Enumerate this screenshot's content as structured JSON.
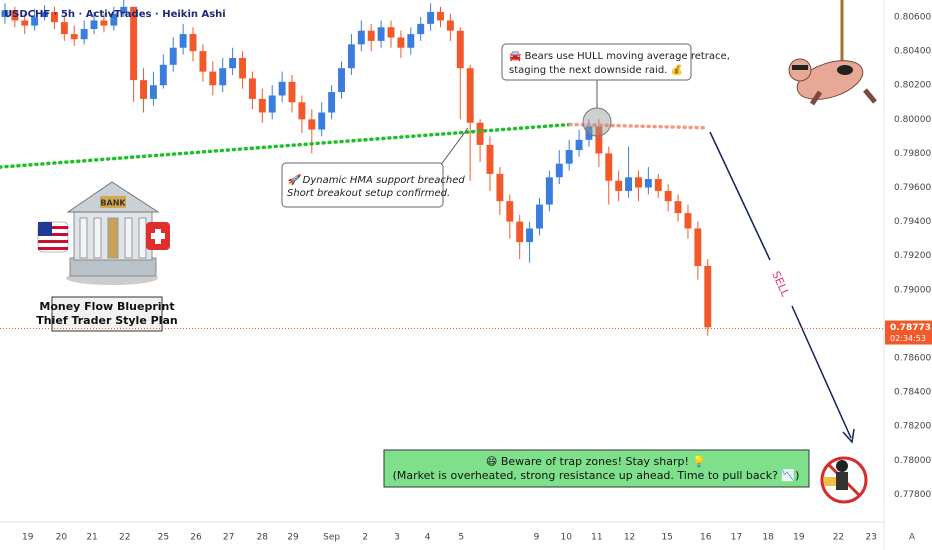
{
  "chart_data": {
    "type": "candlestick",
    "title": "USDCHF · 5h · ActivTrades · Heikin Ashi",
    "up_color": "#3b7ddd",
    "down_color": "#f2592a",
    "open": [
      0.806,
      0.8064,
      0.8058,
      0.8055,
      0.806,
      0.8063,
      0.8057,
      0.805,
      0.8047,
      0.8053,
      0.8058,
      0.8055,
      0.8062,
      0.8066,
      0.8023,
      0.8012,
      0.802,
      0.8032,
      0.8042,
      0.805,
      0.804,
      0.8028,
      0.802,
      0.803,
      0.8036,
      0.8024,
      0.8012,
      0.8004,
      0.8014,
      0.8022,
      0.801,
      0.8,
      0.7994,
      0.8004,
      0.8016,
      0.803,
      0.8044,
      0.8052,
      0.8046,
      0.8054,
      0.8048,
      0.8042,
      0.805,
      0.8056,
      0.8063,
      0.8058,
      0.8052,
      0.803,
      0.7998,
      0.7985,
      0.7968,
      0.7952,
      0.794,
      0.7928,
      0.7936,
      0.795,
      0.7966,
      0.7974,
      0.7982,
      0.7988,
      0.7996,
      0.798,
      0.7964,
      0.7958,
      0.7966,
      0.796,
      0.7965,
      0.7958,
      0.7952,
      0.7945,
      0.7936,
      0.7914
    ],
    "high": [
      0.8068,
      0.8066,
      0.8062,
      0.8065,
      0.8067,
      0.8066,
      0.806,
      0.8055,
      0.8058,
      0.8063,
      0.8062,
      0.8066,
      0.807,
      0.8066,
      0.803,
      0.8028,
      0.8038,
      0.8048,
      0.8056,
      0.8054,
      0.8044,
      0.8034,
      0.8036,
      0.8042,
      0.804,
      0.8028,
      0.8018,
      0.802,
      0.8028,
      0.8026,
      0.8014,
      0.8006,
      0.801,
      0.802,
      0.8034,
      0.805,
      0.8058,
      0.8056,
      0.8058,
      0.8058,
      0.8052,
      0.8054,
      0.806,
      0.8068,
      0.8066,
      0.8062,
      0.8054,
      0.8032,
      0.8,
      0.799,
      0.7972,
      0.7956,
      0.7944,
      0.794,
      0.7954,
      0.797,
      0.7982,
      0.7988,
      0.7994,
      0.8,
      0.8,
      0.7984,
      0.797,
      0.7984,
      0.797,
      0.7972,
      0.7968,
      0.7962,
      0.7956,
      0.795,
      0.794,
      0.7918
    ],
    "low": [
      0.8056,
      0.8054,
      0.805,
      0.8052,
      0.8058,
      0.8053,
      0.8046,
      0.8043,
      0.8044,
      0.805,
      0.8051,
      0.8052,
      0.806,
      0.801,
      0.8004,
      0.8008,
      0.8018,
      0.8028,
      0.8038,
      0.8034,
      0.8022,
      0.8014,
      0.8016,
      0.8026,
      0.8018,
      0.8006,
      0.7998,
      0.8,
      0.801,
      0.8004,
      0.7992,
      0.798,
      0.799,
      0.8,
      0.8012,
      0.8026,
      0.804,
      0.804,
      0.8042,
      0.8042,
      0.8036,
      0.8038,
      0.8046,
      0.8052,
      0.8054,
      0.8046,
      0.8,
      0.7964,
      0.7975,
      0.7958,
      0.7944,
      0.793,
      0.7918,
      0.7916,
      0.7932,
      0.7946,
      0.7962,
      0.797,
      0.7978,
      0.7984,
      0.7972,
      0.795,
      0.7952,
      0.7954,
      0.7952,
      0.7956,
      0.7954,
      0.7946,
      0.794,
      0.793,
      0.7906,
      0.7873
    ],
    "close": [
      0.8064,
      0.8058,
      0.8055,
      0.806,
      0.8063,
      0.8057,
      0.805,
      0.8047,
      0.8053,
      0.8058,
      0.8055,
      0.8062,
      0.8066,
      0.8023,
      0.8012,
      0.802,
      0.8032,
      0.8042,
      0.805,
      0.804,
      0.8028,
      0.802,
      0.803,
      0.8036,
      0.8024,
      0.8012,
      0.8004,
      0.8014,
      0.8022,
      0.801,
      0.8,
      0.7994,
      0.8004,
      0.8016,
      0.803,
      0.8044,
      0.8052,
      0.8046,
      0.8054,
      0.8048,
      0.8042,
      0.805,
      0.8056,
      0.8063,
      0.8058,
      0.8052,
      0.803,
      0.7998,
      0.7985,
      0.7968,
      0.7952,
      0.794,
      0.7928,
      0.7936,
      0.795,
      0.7966,
      0.7974,
      0.7982,
      0.7988,
      0.7996,
      0.798,
      0.7964,
      0.7958,
      0.7966,
      0.796,
      0.7965,
      0.7958,
      0.7952,
      0.7945,
      0.7936,
      0.7914,
      0.7878
    ],
    "lines": [
      {
        "color": "#1fbf2a",
        "x": [
          -0.5,
          57.1
        ],
        "values": [
          0.7972,
          0.7997
        ]
      },
      {
        "color": "#f39a82",
        "x": [
          57.1,
          71
        ],
        "values": [
          0.7997,
          0.7995
        ]
      }
    ],
    "current_price": {
      "value": 0.78773,
      "label": "0.78773"
    },
    "countdown": "02:34:53",
    "xlim": [
      -0.5,
      88.4
    ],
    "ylim": [
      0.7765,
      0.807
    ],
    "yticks": [
      {
        "value": 0.806,
        "label": "0.80600"
      },
      {
        "value": 0.804,
        "label": "0.80400"
      },
      {
        "value": 0.802,
        "label": "0.80200"
      },
      {
        "value": 0.8,
        "label": "0.80000"
      },
      {
        "value": 0.798,
        "label": "0.79800"
      },
      {
        "value": 0.796,
        "label": "0.79600"
      },
      {
        "value": 0.794,
        "label": "0.79400"
      },
      {
        "value": 0.792,
        "label": "0.79200"
      },
      {
        "value": 0.79,
        "label": "0.79000"
      },
      {
        "value": 0.786,
        "label": "0.78600"
      },
      {
        "value": 0.784,
        "label": "0.78400"
      },
      {
        "value": 0.782,
        "label": "0.78200"
      },
      {
        "value": 0.78,
        "label": "0.78000"
      },
      {
        "value": 0.778,
        "label": "0.77800"
      }
    ],
    "xticks": [
      {
        "value": 2.3,
        "label": "19"
      },
      {
        "value": 5.7,
        "label": "20"
      },
      {
        "value": 8.8,
        "label": "21"
      },
      {
        "value": 12.1,
        "label": "22"
      },
      {
        "value": 16.0,
        "label": "25"
      },
      {
        "value": 19.3,
        "label": "26"
      },
      {
        "value": 22.6,
        "label": "27"
      },
      {
        "value": 26.0,
        "label": "28"
      },
      {
        "value": 29.1,
        "label": "29"
      },
      {
        "value": 33.0,
        "label": "Sep"
      },
      {
        "value": 36.4,
        "label": "2"
      },
      {
        "value": 39.6,
        "label": "3"
      },
      {
        "value": 42.7,
        "label": "4"
      },
      {
        "value": 46.1,
        "label": "5"
      },
      {
        "value": 53.7,
        "label": "9"
      },
      {
        "value": 56.7,
        "label": "10"
      },
      {
        "value": 59.8,
        "label": "11"
      },
      {
        "value": 63.1,
        "label": "12"
      },
      {
        "value": 66.9,
        "label": "15"
      },
      {
        "value": 70.8,
        "label": "16"
      },
      {
        "value": 73.9,
        "label": "17"
      },
      {
        "value": 77.1,
        "label": "18"
      },
      {
        "value": 80.2,
        "label": "19"
      },
      {
        "value": 84.2,
        "label": "22"
      },
      {
        "value": 87.5,
        "label": "23"
      }
    ],
    "annotations": {
      "hull": [
        "🚘 Bears use HULL moving average retrace,",
        "staging the next downside raid. 💰"
      ],
      "hma": [
        "🚀 Dynamic HMA support breached",
        "Short breakout setup confirmed."
      ],
      "plan": [
        "Money Flow Blueprint",
        "Thief Trader Style Plan"
      ],
      "bank": "BANK",
      "sell": "SELL",
      "warning": [
        "😄 Beware of trap zones! Stay sharp! 💡",
        "(Market is overheated, strong resistance up ahead. Time to pull back? 📉)"
      ],
      "scale_mode": "A"
    }
  }
}
